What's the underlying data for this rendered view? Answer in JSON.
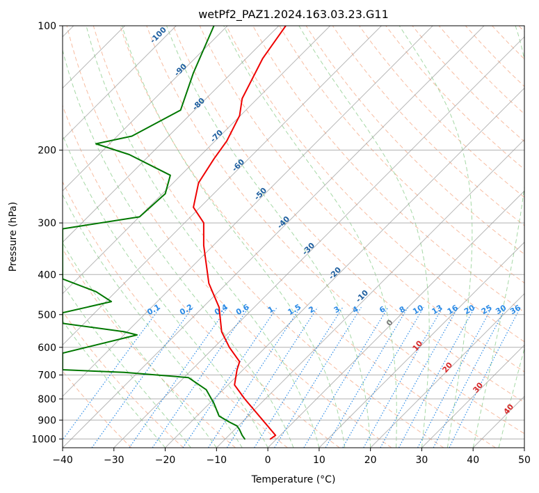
{
  "chart_data": {
    "type": "line",
    "title": "wetPf2_PAZ1.2024.163.03.23.G11",
    "xlabel": "Temperature (°C)",
    "ylabel": "Pressure (hPa)",
    "xlim": [
      -40,
      50
    ],
    "ylim": [
      1050,
      100
    ],
    "y_scale": "log",
    "grid": true,
    "x_ticks": [
      "−40",
      "−30",
      "−20",
      "−10",
      "0",
      "10",
      "20",
      "30",
      "40",
      "50"
    ],
    "y_ticks": [
      "100",
      "200",
      "300",
      "400",
      "500",
      "600",
      "700",
      "800",
      "900",
      "1000"
    ],
    "colors": {
      "temperature": "#ee0000",
      "dewpoint": "#007700",
      "isotherm_label": "#1f5f9f",
      "mixing_ratio": "#2a8ae6",
      "moist_adiabat_label": "#d62728",
      "dry_adiabat": "#f4a582",
      "moist_adiabat": "#8fce8f",
      "skew_grid": "#999999"
    },
    "series": [
      {
        "key": "temperature",
        "points": [
          [
            3.5,
            100
          ],
          [
            -1.0,
            120
          ],
          [
            -5.0,
            150
          ],
          [
            -5.5,
            165
          ],
          [
            -8.0,
            190
          ],
          [
            -10.5,
            210
          ],
          [
            -13.5,
            240
          ],
          [
            -14.5,
            275
          ],
          [
            -12.5,
            300
          ],
          [
            -12.5,
            340
          ],
          [
            -11.5,
            420
          ],
          [
            -9.5,
            480
          ],
          [
            -9.0,
            550
          ],
          [
            -7.5,
            600
          ],
          [
            -5.5,
            650
          ],
          [
            -6.0,
            680
          ],
          [
            -6.5,
            740
          ],
          [
            -4.5,
            800
          ],
          [
            -1.0,
            900
          ],
          [
            1.5,
            980
          ],
          [
            0.5,
            1000
          ]
        ]
      },
      {
        "key": "dewpoint",
        "points": [
          [
            -10.5,
            100
          ],
          [
            -14.5,
            130
          ],
          [
            -17.0,
            160
          ],
          [
            -26.5,
            185
          ],
          [
            -33.5,
            193
          ],
          [
            -27.0,
            205
          ],
          [
            -19.0,
            230
          ],
          [
            -20.0,
            255
          ],
          [
            -25.0,
            290
          ],
          [
            -40.0,
            310
          ],
          [
            -40.0,
            410
          ],
          [
            -33.5,
            440
          ],
          [
            -30.5,
            465
          ],
          [
            -40.0,
            495
          ],
          [
            -40.0,
            525
          ],
          [
            -28.0,
            550
          ],
          [
            -25.5,
            560
          ],
          [
            -40.0,
            620
          ],
          [
            -40.0,
            680
          ],
          [
            -28.0,
            690
          ],
          [
            -15.5,
            710
          ],
          [
            -12.0,
            760
          ],
          [
            -10.5,
            820
          ],
          [
            -9.5,
            880
          ],
          [
            -7.5,
            910
          ],
          [
            -6.0,
            930
          ],
          [
            -5.5,
            950
          ],
          [
            -5.0,
            980
          ],
          [
            -4.5,
            1000
          ]
        ]
      }
    ],
    "isotherm_labels": [
      "-100",
      "-90",
      "-80",
      "-70",
      "-60",
      "-50",
      "-40",
      "-30",
      "-20",
      "-10"
    ],
    "mixing_ratio_labels": [
      "0.1",
      "0.2",
      "0.4",
      "0.6",
      "1",
      "1.5",
      "2",
      "3",
      "4",
      "6",
      "8",
      "10",
      "13",
      "16",
      "20",
      "25",
      "30",
      "36"
    ],
    "moist_adiabat_labels": [
      "0",
      "10",
      "20",
      "30",
      "40"
    ]
  }
}
